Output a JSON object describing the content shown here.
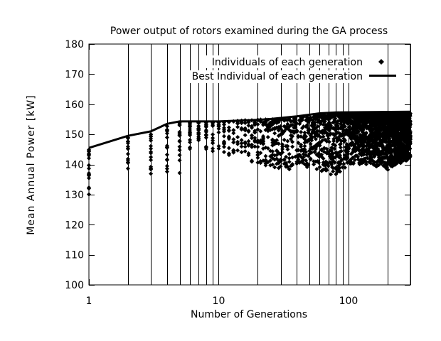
{
  "chart_data": {
    "type": "scatter",
    "title": "Power output of rotors examined during the GA process",
    "xlabel": "Number of Generations",
    "ylabel": "Mean Annual Power [kW]",
    "x_scale": "log",
    "xlim": [
      1,
      300
    ],
    "ylim": [
      100,
      180
    ],
    "x_ticks": [
      1,
      10,
      100
    ],
    "x_tick_labels": [
      "1",
      "10",
      "100"
    ],
    "y_ticks": [
      100,
      110,
      120,
      130,
      140,
      150,
      160,
      170,
      180
    ],
    "y_tick_labels": [
      "100",
      "110",
      "120",
      "130",
      "140",
      "150",
      "160",
      "170",
      "180"
    ],
    "grid": "vertical",
    "legend_position": "top-right",
    "colors": {
      "marks": "#000000",
      "background": "#ffffff"
    },
    "series": [
      {
        "name": "Individuals of each generation",
        "marker": "diamond",
        "per_generation_ranges": [
          {
            "x": 1,
            "min": 130,
            "max": 145
          },
          {
            "x": 2,
            "min": 138,
            "max": 149
          },
          {
            "x": 3,
            "min": 135,
            "max": 150
          },
          {
            "x": 4,
            "min": 137,
            "max": 153
          },
          {
            "x": 5,
            "min": 137,
            "max": 154
          },
          {
            "x": 6,
            "min": 145,
            "max": 154
          },
          {
            "x": 7,
            "min": 147,
            "max": 154
          },
          {
            "x": 8,
            "min": 145,
            "max": 154
          },
          {
            "x": 10,
            "min": 142,
            "max": 154
          },
          {
            "x": 20,
            "min": 140,
            "max": 155
          },
          {
            "x": 30,
            "min": 138,
            "max": 155
          },
          {
            "x": 50,
            "min": 139,
            "max": 156
          },
          {
            "x": 80,
            "min": 136,
            "max": 157
          },
          {
            "x": 100,
            "min": 140,
            "max": 157
          },
          {
            "x": 150,
            "min": 140,
            "max": 157
          },
          {
            "x": 200,
            "min": 138,
            "max": 157
          },
          {
            "x": 300,
            "min": 142,
            "max": 157
          }
        ]
      },
      {
        "name": "Best Individual of each generation",
        "marker": "line",
        "points": [
          {
            "x": 1,
            "y": 145.5
          },
          {
            "x": 2,
            "y": 149.5
          },
          {
            "x": 3,
            "y": 151
          },
          {
            "x": 4,
            "y": 153.5
          },
          {
            "x": 5,
            "y": 154.3
          },
          {
            "x": 10,
            "y": 154.3
          },
          {
            "x": 20,
            "y": 154.8
          },
          {
            "x": 25,
            "y": 155.1
          },
          {
            "x": 40,
            "y": 156
          },
          {
            "x": 60,
            "y": 157
          },
          {
            "x": 80,
            "y": 157.3
          },
          {
            "x": 300,
            "y": 157.5
          }
        ]
      }
    ]
  }
}
